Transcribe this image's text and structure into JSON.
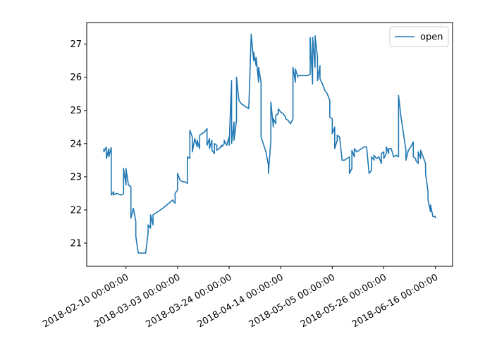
{
  "chart_data": {
    "type": "line",
    "title": "",
    "xlabel": "",
    "ylabel": "",
    "x_start": "2018-02-01",
    "x_end": "2018-06-16",
    "xlim": [
      "2018-01-25",
      "2018-06-23"
    ],
    "ylim": [
      20.3,
      27.65
    ],
    "x_ticks": [
      "2018-02-10 00:00:00",
      "2018-03-03 00:00:00",
      "2018-03-24 00:00:00",
      "2018-04-14 00:00:00",
      "2018-05-05 00:00:00",
      "2018-05-26 00:00:00",
      "2018-06-16 00:00:00"
    ],
    "y_ticks": [
      "21",
      "22",
      "23",
      "24",
      "25",
      "26",
      "27"
    ],
    "legend_position": "top-right",
    "grid": false,
    "series": [
      {
        "name": "open",
        "color": "#1f77b4",
        "points": [
          [
            "2018-02-01",
            23.85
          ],
          [
            "2018-02-01",
            23.75
          ],
          [
            "2018-02-02",
            23.9
          ],
          [
            "2018-02-02",
            23.55
          ],
          [
            "2018-02-03",
            23.85
          ],
          [
            "2018-02-03",
            23.6
          ],
          [
            "2018-02-04",
            23.88
          ],
          [
            "2018-02-04",
            22.9
          ],
          [
            "2018-02-04",
            22.45
          ],
          [
            "2018-02-05",
            22.55
          ],
          [
            "2018-02-05",
            22.45
          ],
          [
            "2018-02-06",
            22.5
          ],
          [
            "2018-02-08",
            22.45
          ],
          [
            "2018-02-09",
            22.48
          ],
          [
            "2018-02-09",
            23.25
          ],
          [
            "2018-02-10",
            22.75
          ],
          [
            "2018-02-10",
            23.25
          ],
          [
            "2018-02-11",
            22.75
          ],
          [
            "2018-02-12",
            22.7
          ],
          [
            "2018-02-12",
            21.75
          ],
          [
            "2018-02-13",
            22.05
          ],
          [
            "2018-02-14",
            21.65
          ],
          [
            "2018-02-14",
            21.2
          ],
          [
            "2018-02-15",
            20.7
          ],
          [
            "2018-02-17",
            20.7
          ],
          [
            "2018-02-18",
            20.7
          ],
          [
            "2018-02-19",
            21.3
          ],
          [
            "2018-02-19",
            21.55
          ],
          [
            "2018-02-20",
            21.45
          ],
          [
            "2018-02-20",
            21.85
          ],
          [
            "2018-02-21",
            21.55
          ],
          [
            "2018-02-21",
            21.85
          ],
          [
            "2018-02-25",
            22.05
          ],
          [
            "2018-03-01",
            22.3
          ],
          [
            "2018-03-02",
            22.2
          ],
          [
            "2018-03-02",
            22.5
          ],
          [
            "2018-03-03",
            22.6
          ],
          [
            "2018-03-03",
            23.1
          ],
          [
            "2018-03-04",
            22.9
          ],
          [
            "2018-03-05",
            22.85
          ],
          [
            "2018-03-06",
            22.85
          ],
          [
            "2018-03-07",
            22.8
          ],
          [
            "2018-03-07",
            23.6
          ],
          [
            "2018-03-08",
            23.55
          ],
          [
            "2018-03-08",
            24.4
          ],
          [
            "2018-03-09",
            24.2
          ],
          [
            "2018-03-09",
            23.75
          ],
          [
            "2018-03-10",
            24.15
          ],
          [
            "2018-03-11",
            23.9
          ],
          [
            "2018-03-11",
            24.1
          ],
          [
            "2018-03-12",
            23.85
          ],
          [
            "2018-03-12",
            24.25
          ],
          [
            "2018-03-13",
            24.3
          ],
          [
            "2018-03-14",
            24.35
          ],
          [
            "2018-03-15",
            24.45
          ],
          [
            "2018-03-15",
            23.95
          ],
          [
            "2018-03-16",
            24.15
          ],
          [
            "2018-03-16",
            23.85
          ],
          [
            "2018-03-17",
            24.1
          ],
          [
            "2018-03-17",
            23.8
          ],
          [
            "2018-03-18",
            23.7
          ],
          [
            "2018-03-18",
            24.0
          ],
          [
            "2018-03-19",
            23.95
          ],
          [
            "2018-03-19",
            23.8
          ],
          [
            "2018-03-20",
            23.85
          ],
          [
            "2018-03-21",
            23.95
          ],
          [
            "2018-03-21",
            23.9
          ],
          [
            "2018-03-22",
            24.0
          ],
          [
            "2018-03-22",
            24.1
          ],
          [
            "2018-03-23",
            23.95
          ],
          [
            "2018-03-24",
            24.2
          ],
          [
            "2018-03-24",
            23.95
          ],
          [
            "2018-03-25",
            25.9
          ],
          [
            "2018-03-25",
            24.0
          ],
          [
            "2018-03-26",
            24.65
          ],
          [
            "2018-03-26",
            24.1
          ],
          [
            "2018-03-27",
            24.7
          ],
          [
            "2018-03-27",
            26.0
          ],
          [
            "2018-03-28",
            25.3
          ],
          [
            "2018-03-29",
            25.2
          ],
          [
            "2018-03-30",
            25.15
          ],
          [
            "2018-03-31",
            25.1
          ],
          [
            "2018-04-01",
            25.05
          ],
          [
            "2018-04-02",
            27.3
          ],
          [
            "2018-04-03",
            26.5
          ],
          [
            "2018-04-03",
            26.75
          ],
          [
            "2018-04-04",
            26.35
          ],
          [
            "2018-04-04",
            26.6
          ],
          [
            "2018-04-05",
            25.85
          ],
          [
            "2018-04-05",
            26.3
          ],
          [
            "2018-04-06",
            25.85
          ],
          [
            "2018-04-06",
            24.2
          ],
          [
            "2018-04-08",
            23.75
          ],
          [
            "2018-04-09",
            23.35
          ],
          [
            "2018-04-09",
            23.1
          ],
          [
            "2018-04-10",
            24.1
          ],
          [
            "2018-04-10",
            25.25
          ],
          [
            "2018-04-11",
            24.5
          ],
          [
            "2018-04-11",
            24.75
          ],
          [
            "2018-04-12",
            24.6
          ],
          [
            "2018-04-12",
            24.85
          ],
          [
            "2018-04-13",
            24.9
          ],
          [
            "2018-04-13",
            25.05
          ],
          [
            "2018-04-14",
            24.95
          ],
          [
            "2018-04-15",
            24.9
          ],
          [
            "2018-04-16",
            24.8
          ],
          [
            "2018-04-16",
            24.75
          ],
          [
            "2018-04-17",
            24.7
          ],
          [
            "2018-04-18",
            24.6
          ],
          [
            "2018-04-19",
            24.75
          ],
          [
            "2018-04-19",
            26.3
          ],
          [
            "2018-04-20",
            25.85
          ],
          [
            "2018-04-20",
            26.25
          ],
          [
            "2018-04-21",
            26.0
          ],
          [
            "2018-04-21",
            26.05
          ],
          [
            "2018-04-22",
            26.05
          ],
          [
            "2018-04-24",
            26.05
          ],
          [
            "2018-04-25",
            26.05
          ],
          [
            "2018-04-26",
            26.1
          ],
          [
            "2018-04-26",
            27.2
          ],
          [
            "2018-04-27",
            25.8
          ],
          [
            "2018-04-27",
            27.2
          ],
          [
            "2018-04-28",
            26.3
          ],
          [
            "2018-04-28",
            27.25
          ],
          [
            "2018-04-29",
            26.6
          ],
          [
            "2018-04-29",
            25.9
          ],
          [
            "2018-04-30",
            26.35
          ],
          [
            "2018-04-30",
            25.95
          ],
          [
            "2018-05-01",
            25.8
          ],
          [
            "2018-05-02",
            25.6
          ],
          [
            "2018-05-03",
            25.5
          ],
          [
            "2018-05-04",
            25.3
          ],
          [
            "2018-05-04",
            24.8
          ],
          [
            "2018-05-05",
            24.75
          ],
          [
            "2018-05-05",
            24.3
          ],
          [
            "2018-05-06",
            24.5
          ],
          [
            "2018-05-06",
            23.85
          ],
          [
            "2018-05-07",
            24.1
          ],
          [
            "2018-05-07",
            24.25
          ],
          [
            "2018-05-08",
            24.2
          ],
          [
            "2018-05-09",
            23.5
          ],
          [
            "2018-05-10",
            23.5
          ],
          [
            "2018-05-11",
            23.55
          ],
          [
            "2018-05-12",
            23.6
          ],
          [
            "2018-05-12",
            23.1
          ],
          [
            "2018-05-13",
            23.25
          ],
          [
            "2018-05-13",
            23.8
          ],
          [
            "2018-05-14",
            23.6
          ],
          [
            "2018-05-14",
            23.85
          ],
          [
            "2018-05-15",
            23.75
          ],
          [
            "2018-05-16",
            23.8
          ],
          [
            "2018-05-17",
            23.85
          ],
          [
            "2018-05-18",
            23.9
          ],
          [
            "2018-05-19",
            23.9
          ],
          [
            "2018-05-20",
            23.1
          ],
          [
            "2018-05-21",
            23.2
          ],
          [
            "2018-05-21",
            23.6
          ],
          [
            "2018-05-22",
            23.5
          ],
          [
            "2018-05-22",
            23.65
          ],
          [
            "2018-05-23",
            23.55
          ],
          [
            "2018-05-24",
            23.6
          ],
          [
            "2018-05-25",
            23.4
          ],
          [
            "2018-05-25",
            23.7
          ],
          [
            "2018-05-26",
            23.75
          ],
          [
            "2018-05-26",
            23.55
          ],
          [
            "2018-05-27",
            23.7
          ],
          [
            "2018-05-27",
            23.9
          ],
          [
            "2018-05-28",
            23.7
          ],
          [
            "2018-05-28",
            23.85
          ],
          [
            "2018-05-29",
            23.85
          ],
          [
            "2018-05-30",
            23.6
          ],
          [
            "2018-05-31",
            23.65
          ],
          [
            "2018-06-01",
            23.6
          ],
          [
            "2018-06-01",
            25.45
          ],
          [
            "2018-06-02",
            24.8
          ],
          [
            "2018-06-03",
            24.3
          ],
          [
            "2018-06-04",
            23.8
          ],
          [
            "2018-06-04",
            23.5
          ],
          [
            "2018-06-05",
            23.8
          ],
          [
            "2018-06-06",
            23.9
          ],
          [
            "2018-06-07",
            24.05
          ],
          [
            "2018-06-07",
            23.6
          ],
          [
            "2018-06-08",
            23.55
          ],
          [
            "2018-06-08",
            23.5
          ],
          [
            "2018-06-09",
            23.4
          ],
          [
            "2018-06-09",
            23.75
          ],
          [
            "2018-06-10",
            23.55
          ],
          [
            "2018-06-10",
            23.8
          ],
          [
            "2018-06-11",
            23.6
          ],
          [
            "2018-06-12",
            23.4
          ],
          [
            "2018-06-12",
            23.1
          ],
          [
            "2018-06-13",
            22.55
          ],
          [
            "2018-06-13",
            22.3
          ],
          [
            "2018-06-14",
            21.95
          ],
          [
            "2018-06-14",
            22.15
          ],
          [
            "2018-06-15",
            21.8
          ],
          [
            "2018-06-16",
            21.8
          ],
          [
            "2018-06-16",
            21.75
          ]
        ]
      }
    ]
  }
}
